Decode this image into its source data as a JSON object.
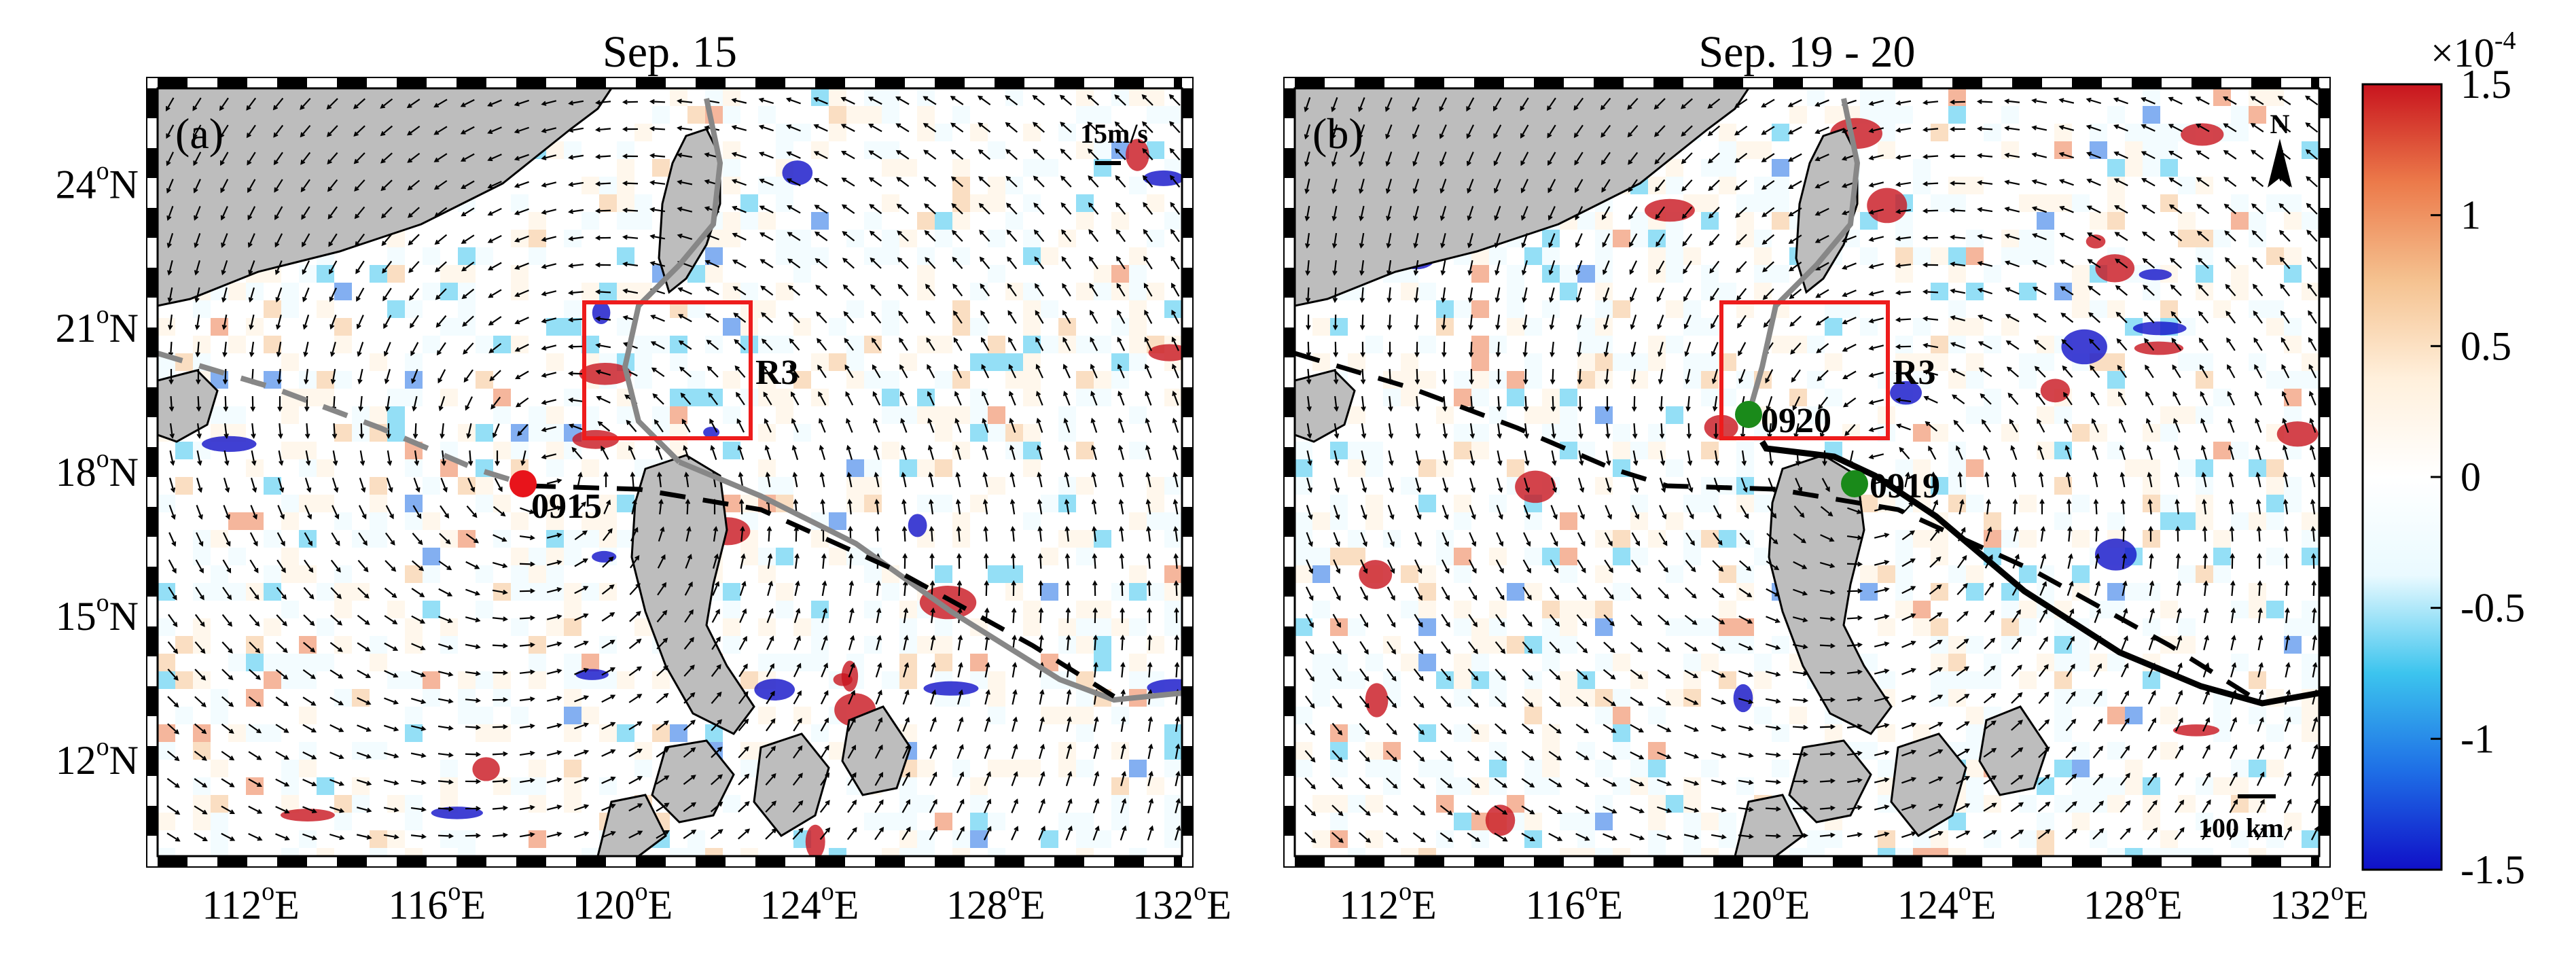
{
  "panels": [
    {
      "id": "a",
      "title": "Sep. 15",
      "panel_label": "(a)",
      "region_label": "R3",
      "point_label": "0915",
      "point_color": "#e8141b",
      "scale_label": "15m/s",
      "north_label": "",
      "distance_label": "",
      "track_color": "#878787"
    },
    {
      "id": "b",
      "title": "Sep. 19 - 20",
      "panel_label": "(b)",
      "region_label": "R3",
      "point_label": "0919",
      "point_label_2": "0920",
      "point_color": "#1a8a1a",
      "scale_label": "",
      "north_label": "N",
      "distance_label": "100 km",
      "track_color": "#000000"
    }
  ],
  "axes": {
    "lon_ticks": [
      {
        "deg": "112",
        "suffix": "E"
      },
      {
        "deg": "116",
        "suffix": "E"
      },
      {
        "deg": "120",
        "suffix": "E"
      },
      {
        "deg": "124",
        "suffix": "E"
      },
      {
        "deg": "128",
        "suffix": "E"
      },
      {
        "deg": "132",
        "suffix": "E"
      }
    ],
    "lat_ticks": [
      {
        "deg": "24",
        "suffix": "N"
      },
      {
        "deg": "21",
        "suffix": "N"
      },
      {
        "deg": "18",
        "suffix": "N"
      },
      {
        "deg": "15",
        "suffix": "N"
      },
      {
        "deg": "12",
        "suffix": "N"
      }
    ],
    "lon_range": [
      110,
      132
    ],
    "lat_range": [
      10,
      26
    ],
    "degree_symbol": "o"
  },
  "colorbar": {
    "exponent_base": "×10",
    "exponent_power": "-4",
    "ticks": [
      "1.5",
      "1",
      "0.5",
      "0",
      "-0.5",
      "-1",
      "-1.5"
    ],
    "range": [
      -1.5,
      1.5
    ],
    "colors": [
      "#1010c8",
      "#1e6ee6",
      "#3cc4ee",
      "#eafaff",
      "#ffffff",
      "#fff0dc",
      "#f5c290",
      "#ec7a4a",
      "#c8141e"
    ]
  },
  "colors": {
    "land": "#bdbdbd",
    "box": "#ee1c1c",
    "arrow": "#000000"
  }
}
